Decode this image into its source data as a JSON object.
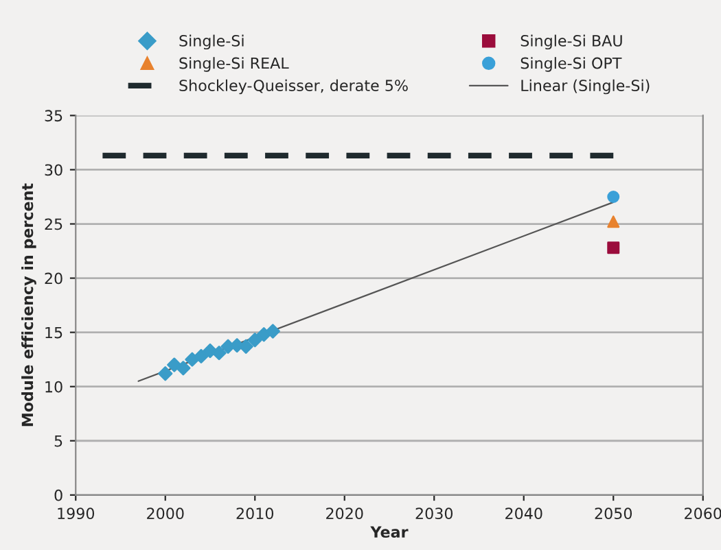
{
  "chart_data": {
    "type": "scatter",
    "xlabel": "Year",
    "ylabel": "Module efficiency in percent",
    "xlim": [
      1990,
      2060
    ],
    "xticks": [
      1990,
      2000,
      2010,
      2020,
      2030,
      2040,
      2050,
      2060
    ],
    "ylim": [
      0,
      35
    ],
    "yticks": [
      0,
      5,
      10,
      15,
      20,
      25,
      30,
      35
    ],
    "grid": "y",
    "legend": "top",
    "series": [
      {
        "name": "Single-Si",
        "marker": "diamond",
        "color": "#3a9cc8",
        "x": [
          2000,
          2001,
          2002,
          2003,
          2004,
          2005,
          2006,
          2007,
          2008,
          2009,
          2010,
          2011,
          2012
        ],
        "values": [
          11.2,
          12.0,
          11.7,
          12.5,
          12.8,
          13.3,
          13.1,
          13.7,
          13.8,
          13.7,
          14.3,
          14.8,
          15.1
        ]
      },
      {
        "name": "Single-Si REAL",
        "marker": "triangle",
        "color": "#e8822e",
        "x": [
          2050
        ],
        "values": [
          25.2
        ]
      },
      {
        "name": "Shockley-Queisser, derate 5%",
        "type": "line",
        "line_style": "dashed",
        "color": "#1f2a2e",
        "x": [
          1993,
          2050
        ],
        "values": [
          31.3,
          31.3
        ]
      },
      {
        "name": "Single-Si BAU",
        "marker": "square",
        "color": "#9b0d3c",
        "x": [
          2050
        ],
        "values": [
          22.8
        ]
      },
      {
        "name": "Single-Si OPT",
        "marker": "circle",
        "color": "#3aa0d8",
        "x": [
          2050
        ],
        "values": [
          27.5
        ]
      },
      {
        "name": "Linear (Single-Si)",
        "type": "line",
        "line_style": "solid",
        "color": "#555555",
        "x": [
          1997,
          2050
        ],
        "values": [
          10.5,
          27.0
        ]
      }
    ]
  }
}
